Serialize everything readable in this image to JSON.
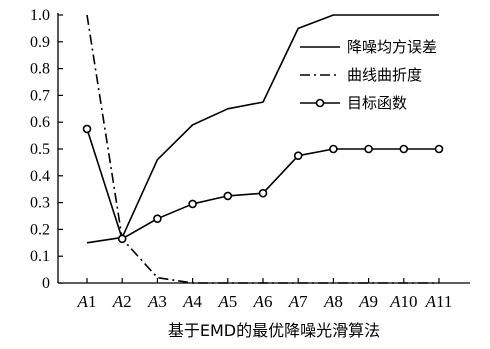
{
  "chart_data": {
    "type": "line",
    "xlabel": "基于EMD的最优降噪光滑算法",
    "ylabel": "",
    "categories": [
      "A1",
      "A2",
      "A3",
      "A4",
      "A5",
      "A6",
      "A7",
      "A8",
      "A9",
      "A10",
      "A11"
    ],
    "ylim": [
      0,
      1.0
    ],
    "yticks": [
      "0",
      "0.1",
      "0.2",
      "0.3",
      "0.4",
      "0.5",
      "0.6",
      "0.7",
      "0.8",
      "0.9",
      "1.0"
    ],
    "legend_position": "top-right",
    "series": [
      {
        "name": "降噪均方误差",
        "style": "solid",
        "marker": "none",
        "color": "#000000",
        "values": [
          0.15,
          0.17,
          0.46,
          0.59,
          0.65,
          0.675,
          0.95,
          1.0,
          1.0,
          1.0,
          1.0
        ]
      },
      {
        "name": "曲线曲折度",
        "style": "dashdot",
        "marker": "none",
        "color": "#000000",
        "values": [
          1.0,
          0.165,
          0.02,
          0.0,
          0.0,
          0.0,
          0.0,
          0.0,
          0.0,
          0.0,
          0.0
        ]
      },
      {
        "name": "目标函数",
        "style": "solid",
        "marker": "circle",
        "color": "#000000",
        "values": [
          0.575,
          0.165,
          0.24,
          0.295,
          0.325,
          0.335,
          0.475,
          0.5,
          0.5,
          0.5,
          0.5
        ]
      }
    ]
  }
}
